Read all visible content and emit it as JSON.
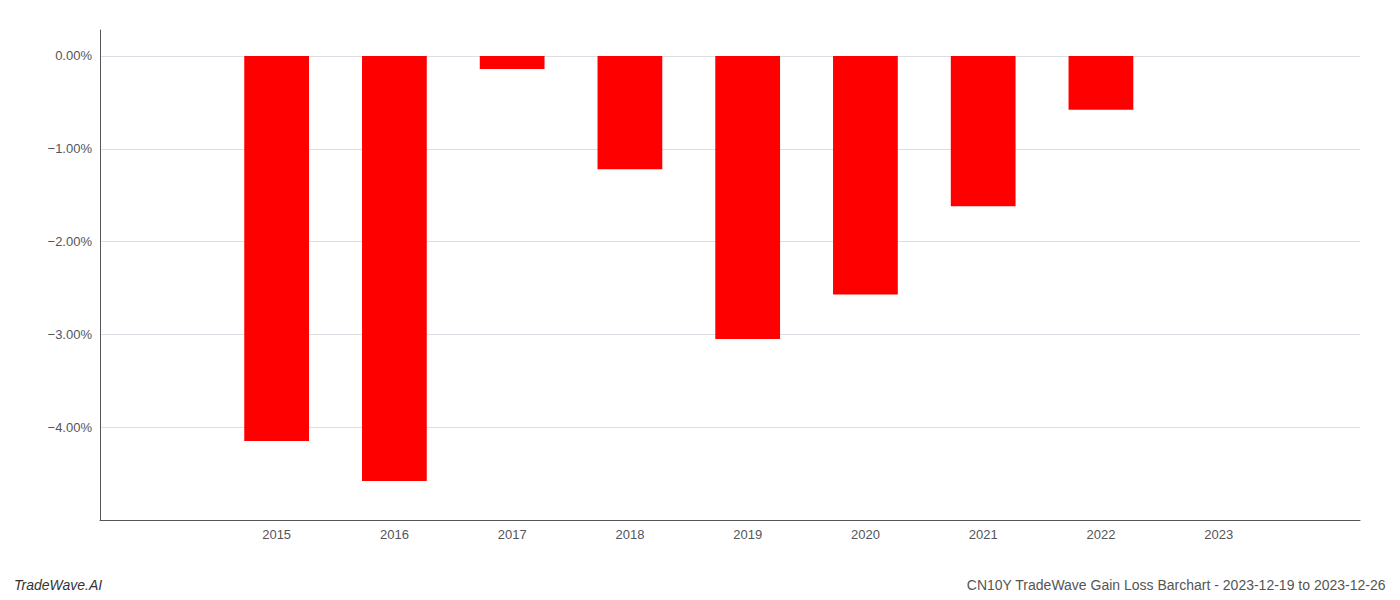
{
  "chart_data": {
    "type": "bar",
    "x": [
      2015,
      2016,
      2017,
      2018,
      2019,
      2020,
      2021,
      2022,
      2023
    ],
    "values": [
      -4.15,
      -4.58,
      -0.14,
      -1.22,
      -3.05,
      -2.57,
      -1.62,
      -0.58,
      0.0
    ],
    "color": "#ff0000",
    "xlim": [
      2013.5,
      2024.2
    ],
    "xticks": [
      2015,
      2016,
      2017,
      2018,
      2019,
      2020,
      2021,
      2022,
      2023
    ],
    "ylim": [
      -5.0,
      0.28
    ],
    "yticks": [
      {
        "value": 0.0,
        "label": "0.00%"
      },
      {
        "value": -1.0,
        "label": "−1.00%"
      },
      {
        "value": -2.0,
        "label": "−2.00%"
      },
      {
        "value": -3.0,
        "label": "−3.00%"
      },
      {
        "value": -4.0,
        "label": "−4.00%"
      }
    ],
    "grid": true,
    "annotations": [
      "TradeWave.AI",
      "CN10Y TradeWave Gain Loss Barchart - 2023-12-19 to 2023-12-26"
    ]
  }
}
